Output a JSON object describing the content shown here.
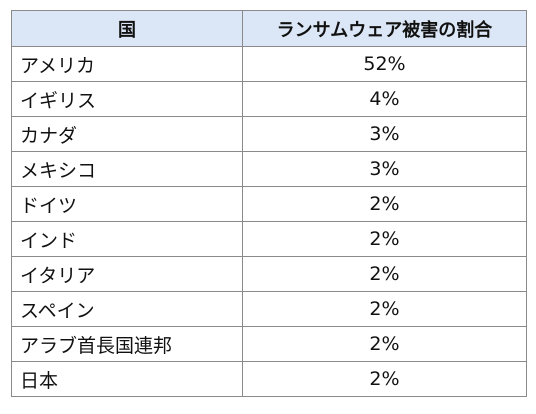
{
  "table": {
    "headers": [
      "国",
      "ランサムウェア被害の割合"
    ],
    "rows": [
      {
        "country": "アメリカ",
        "share": "52%"
      },
      {
        "country": "イギリス",
        "share": "4%"
      },
      {
        "country": "カナダ",
        "share": "3%"
      },
      {
        "country": "メキシコ",
        "share": "3%"
      },
      {
        "country": "ドイツ",
        "share": "2%"
      },
      {
        "country": "インド",
        "share": "2%"
      },
      {
        "country": "イタリア",
        "share": "2%"
      },
      {
        "country": "スペイン",
        "share": "2%"
      },
      {
        "country": "アラブ首長国連邦",
        "share": "2%"
      },
      {
        "country": "日本",
        "share": "2%"
      }
    ]
  },
  "colors": {
    "header_background": "#dbe7f6",
    "border": "#8a8a8a",
    "text": "#111111"
  }
}
